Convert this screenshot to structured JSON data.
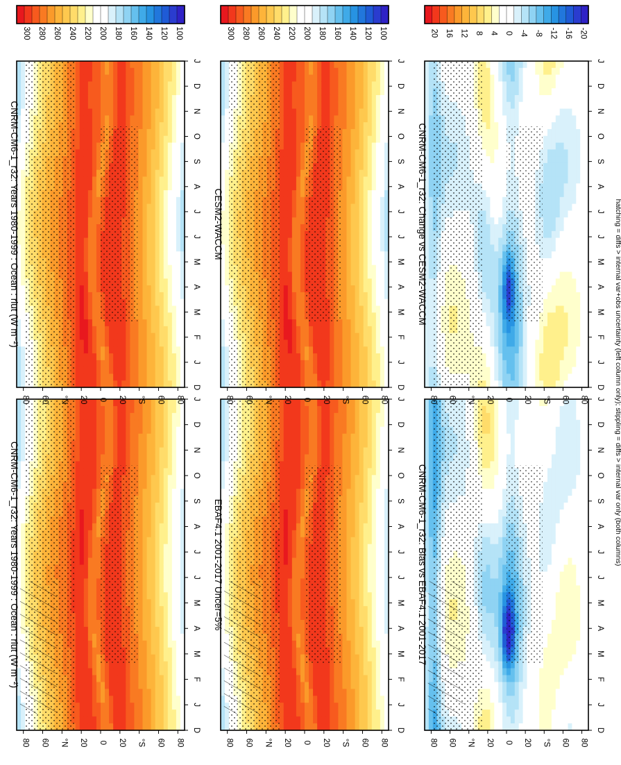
{
  "footnote": "hatching = diffs > internal var+obs uncertainty (left column only); stippling = diffs > internal var only (both columns)",
  "months": [
    "D",
    "J",
    "F",
    "M",
    "A",
    "M",
    "J",
    "J",
    "A",
    "S",
    "O",
    "N",
    "D",
    "J"
  ],
  "lat_ticks": [
    "80",
    "60",
    "°N",
    "20",
    "0",
    "20",
    "°S",
    "60",
    "80"
  ],
  "abs_colorbar": {
    "labels": [
      "300",
      "280",
      "260",
      "240",
      "220",
      "200",
      "180",
      "160",
      "140",
      "120",
      "100"
    ],
    "colors": [
      "#e8181e",
      "#f2381c",
      "#f75a1e",
      "#f97a22",
      "#fb9a2a",
      "#fdb43a",
      "#fec84e",
      "#ffdc6a",
      "#fff08c",
      "#ffffcc",
      "#ffffff",
      "#ffffff",
      "#d9f1fb",
      "#b5e3f7",
      "#8fd3f3",
      "#65c0ee",
      "#3faae8",
      "#2793e2",
      "#2177dc",
      "#1f5bd6",
      "#2a3ccf",
      "#2f22c6"
    ]
  },
  "diff_colorbar": {
    "labels": [
      "20",
      "16",
      "12",
      "8",
      "4",
      "0",
      "-4",
      "-8",
      "-12",
      "-16",
      "-20"
    ],
    "colors": [
      "#e8181e",
      "#f2381c",
      "#f75a1e",
      "#f97a22",
      "#fb9a2a",
      "#fdb43a",
      "#fec84e",
      "#ffdc6a",
      "#fff08c",
      "#ffffcc",
      "#ffffff",
      "#ffffff",
      "#d9f1fb",
      "#b5e3f7",
      "#8fd3f3",
      "#65c0ee",
      "#3faae8",
      "#2793e2",
      "#2177dc",
      "#1f5bd6",
      "#2a3ccf",
      "#2f22c6"
    ]
  },
  "chart_data": [
    {
      "type": "heatmap",
      "title": "CNRM-CM6-1_r32: Years 1980-1999 : Ocean : rlut (W m⁻²)",
      "xlabel": "",
      "ylabel": "",
      "x": [
        "D",
        "J",
        "F",
        "M",
        "A",
        "M",
        "J",
        "J",
        "A",
        "S",
        "O",
        "N",
        "D",
        "J"
      ],
      "y": [
        "80",
        "60",
        "°N",
        "20",
        "0",
        "20",
        "°S",
        "60",
        "80"
      ],
      "vrange": [
        100,
        300
      ],
      "hatching": true,
      "stippling": true
    },
    {
      "type": "heatmap",
      "title": "CNRM-CM6-1_r32: Years 1980-1999 : Ocean : rlut (W m⁻²)",
      "xlabel": "",
      "ylabel": "",
      "x": [
        "D",
        "J",
        "F",
        "M",
        "A",
        "M",
        "J",
        "J",
        "A",
        "S",
        "O",
        "N",
        "D",
        "J"
      ],
      "y": [
        "80",
        "60",
        "°N",
        "20",
        "0",
        "20",
        "°S",
        "60",
        "80"
      ],
      "vrange": [
        100,
        300
      ],
      "hatching": false,
      "stippling": true
    },
    {
      "type": "heatmap",
      "title": "EBAF4.1 2001-2017 Uncer=5%",
      "xlabel": "",
      "ylabel": "",
      "x": [
        "D",
        "J",
        "F",
        "M",
        "A",
        "M",
        "J",
        "J",
        "A",
        "S",
        "O",
        "N",
        "D",
        "J"
      ],
      "y": [
        "80",
        "60",
        "°N",
        "20",
        "0",
        "20",
        "°S",
        "60",
        "80"
      ],
      "vrange": [
        100,
        300
      ],
      "hatching": true,
      "stippling": true
    },
    {
      "type": "heatmap",
      "title": "CESM2-WACCM",
      "xlabel": "",
      "ylabel": "",
      "x": [
        "D",
        "J",
        "F",
        "M",
        "A",
        "M",
        "J",
        "J",
        "A",
        "S",
        "O",
        "N",
        "D",
        "J"
      ],
      "y": [
        "80",
        "60",
        "°N",
        "20",
        "0",
        "20",
        "°S",
        "60",
        "80"
      ],
      "vrange": [
        100,
        300
      ],
      "hatching": false,
      "stippling": true
    },
    {
      "type": "heatmap",
      "title": "CNRM-CM6-1_r32: Bias vs EBAF4.1 2001-2017",
      "xlabel": "",
      "ylabel": "",
      "x": [
        "D",
        "J",
        "F",
        "M",
        "A",
        "M",
        "J",
        "J",
        "A",
        "S",
        "O",
        "N",
        "D",
        "J"
      ],
      "y": [
        "80",
        "60",
        "°N",
        "20",
        "0",
        "20",
        "°S",
        "60",
        "80"
      ],
      "vrange": [
        -20,
        20
      ],
      "hatching": true,
      "stippling": true
    },
    {
      "type": "heatmap",
      "title": "CNRM-CM6-1_r32: Change vs CESM2-WACCM",
      "xlabel": "",
      "ylabel": "",
      "x": [
        "D",
        "J",
        "F",
        "M",
        "A",
        "M",
        "J",
        "J",
        "A",
        "S",
        "O",
        "N",
        "D",
        "J"
      ],
      "y": [
        "80",
        "60",
        "°N",
        "20",
        "0",
        "20",
        "°S",
        "60",
        "80"
      ],
      "vrange": [
        -20,
        20
      ],
      "hatching": false,
      "stippling": true
    }
  ]
}
